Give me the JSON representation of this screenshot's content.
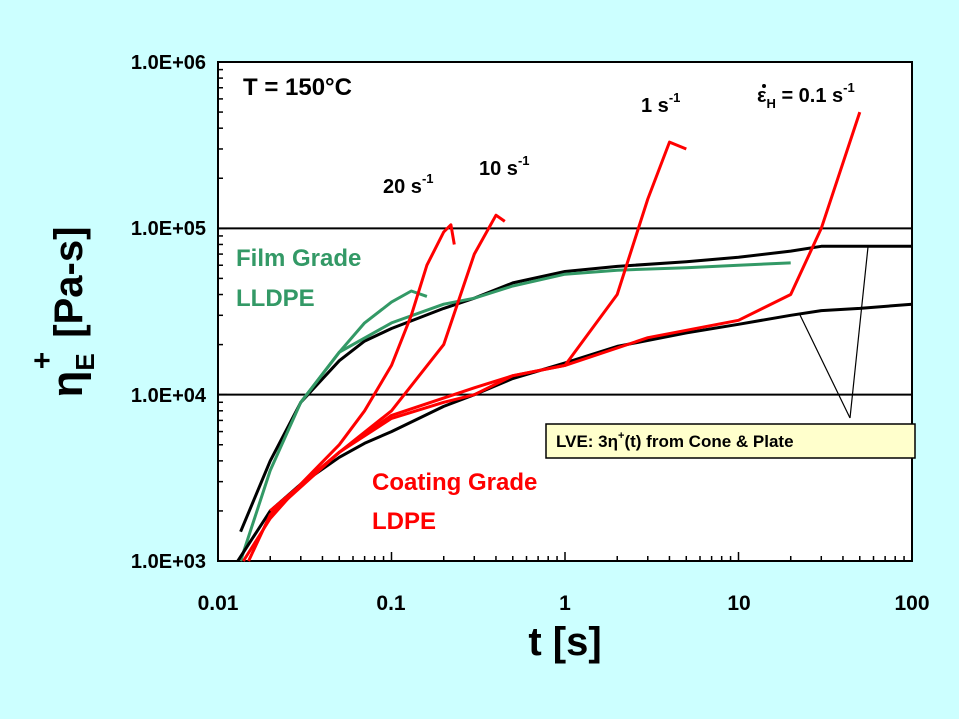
{
  "chart_data": {
    "type": "line",
    "title": "",
    "xlabel": "t [s]",
    "ylabel_main": "η",
    "ylabel_sub": "E",
    "ylabel_sup": "+",
    "ylabel_unit": "[Pa-s]",
    "x_scale": "log",
    "y_scale": "log",
    "xlim": [
      0.01,
      100
    ],
    "ylim": [
      1000,
      1000000
    ],
    "x_ticks": [
      0.01,
      0.1,
      1,
      10,
      100
    ],
    "x_tick_labels": [
      "0.01",
      "0.1",
      "1",
      "10",
      "100"
    ],
    "y_ticks": [
      1000,
      10000,
      100000,
      1000000
    ],
    "y_tick_labels": [
      "1.0E+03",
      "1.0E+04",
      "1.0E+05",
      "1.0E+06"
    ],
    "gridlines_y": [
      10000,
      100000
    ],
    "temperature_label": "T = 150°C",
    "colors": {
      "lldpe": "#339966",
      "ldpe": "#ff0000",
      "lve": "#000000",
      "background": "#ccffff",
      "box": "#ffffcc"
    },
    "rate_labels": [
      {
        "value": "20 s",
        "sup": "-1"
      },
      {
        "value": "10 s",
        "sup": "-1"
      },
      {
        "value": "1 s",
        "sup": "-1"
      },
      {
        "prefix": "ε",
        "sub": "H",
        "value": " = 0.1 s",
        "sup": "-1"
      }
    ],
    "legend": {
      "film_line1": "Film Grade",
      "film_line2": "LLDPE",
      "coating_line1": "Coating Grade",
      "coating_line2": "LDPE",
      "lve_prefix": "LVE: 3η",
      "lve_sup": "+",
      "lve_suffix": "(t) from Cone & Plate"
    },
    "series": [
      {
        "name": "LLDPE LVE (3η+)",
        "color": "#000000",
        "x": [
          0.0135,
          0.02,
          0.03,
          0.05,
          0.07,
          0.1,
          0.2,
          0.3,
          0.5,
          1,
          2,
          5,
          10,
          20,
          30,
          50,
          100
        ],
        "y": [
          1500,
          4000,
          9000,
          16000,
          21000,
          25000,
          33000,
          38000,
          47000,
          55000,
          59000,
          63000,
          67000,
          73000,
          78000,
          78000,
          78000
        ]
      },
      {
        "name": "LLDPE ε̇=20 s-1",
        "color": "#339966",
        "x": [
          0.0135,
          0.02,
          0.03,
          0.05,
          0.07,
          0.1,
          0.13,
          0.16
        ],
        "y": [
          1000,
          3500,
          9000,
          18000,
          27000,
          36000,
          42000,
          39000
        ]
      },
      {
        "name": "LLDPE ε̇=0.1 s-1",
        "color": "#339966",
        "x": [
          0.03,
          0.05,
          0.1,
          0.2,
          0.3,
          0.5,
          1,
          2,
          5,
          10,
          20
        ],
        "y": [
          9000,
          18000,
          27000,
          35000,
          38000,
          45000,
          53000,
          56000,
          58000,
          60000,
          62000
        ]
      },
      {
        "name": "LDPE LVE (3η+)",
        "color": "#000000",
        "x": [
          0.013,
          0.02,
          0.03,
          0.05,
          0.07,
          0.1,
          0.2,
          0.3,
          0.5,
          1,
          2,
          5,
          10,
          20,
          30,
          50,
          100
        ],
        "y": [
          1000,
          2000,
          2900,
          4200,
          5100,
          6000,
          8500,
          10000,
          12500,
          15500,
          19500,
          23500,
          26500,
          30000,
          32000,
          33000,
          35000
        ]
      },
      {
        "name": "LDPE ε̇=20 s-1",
        "color": "#ff0000",
        "x": [
          0.014,
          0.02,
          0.03,
          0.05,
          0.07,
          0.1,
          0.13,
          0.16,
          0.2,
          0.22,
          0.23
        ],
        "y": [
          1000,
          1800,
          2900,
          5000,
          8000,
          15000,
          30000,
          60000,
          95000,
          105000,
          80000
        ]
      },
      {
        "name": "LDPE ε̇=10 s-1",
        "color": "#ff0000",
        "x": [
          0.015,
          0.02,
          0.05,
          0.1,
          0.2,
          0.3,
          0.4,
          0.45
        ],
        "y": [
          1000,
          1900,
          4500,
          8000,
          20000,
          70000,
          120000,
          110000
        ]
      },
      {
        "name": "LDPE ε̇=1 s-1",
        "color": "#ff0000",
        "x": [
          0.02,
          0.05,
          0.1,
          0.3,
          0.5,
          1,
          2,
          3,
          4,
          5
        ],
        "y": [
          2000,
          4500,
          7500,
          11000,
          13000,
          15000,
          40000,
          150000,
          330000,
          300000
        ]
      },
      {
        "name": "LDPE ε̇=0.1 s-1",
        "color": "#ff0000",
        "x": [
          0.02,
          0.05,
          0.1,
          0.2,
          0.3,
          0.5,
          1,
          3,
          10,
          20,
          30,
          50
        ],
        "y": [
          2000,
          4500,
          7200,
          9000,
          10000,
          13000,
          15000,
          22000,
          28000,
          40000,
          100000,
          500000
        ]
      }
    ]
  }
}
